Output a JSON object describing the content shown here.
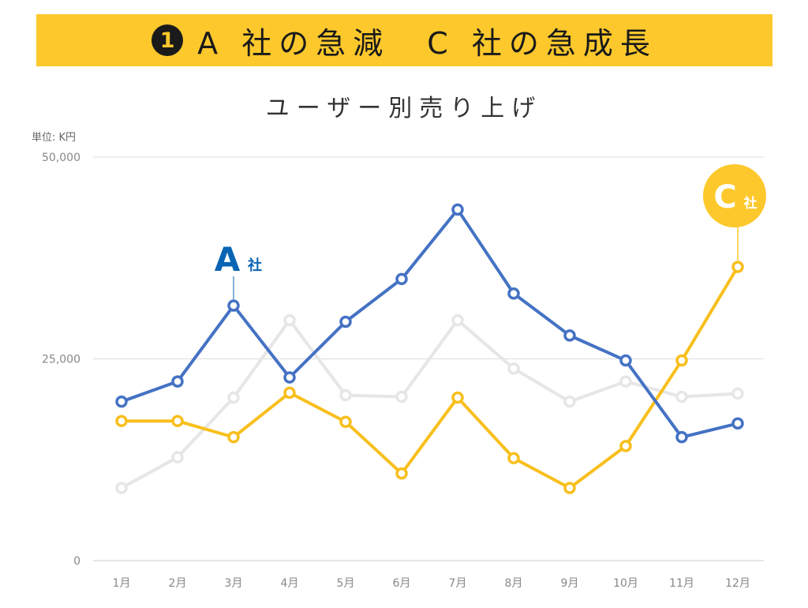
{
  "banner": {
    "number": "1",
    "text": "A 社の急減　C 社の急成長"
  },
  "chart_data": {
    "type": "line",
    "title": "ユーザー別売り上げ",
    "unit_label": "単位: K円",
    "categories": [
      "1月",
      "2月",
      "3月",
      "4月",
      "5月",
      "6月",
      "7月",
      "8月",
      "9月",
      "10月",
      "11月",
      "12月"
    ],
    "ylim": [
      0,
      50000
    ],
    "yticks": [
      0,
      25000,
      50000
    ],
    "ytick_labels": [
      "0",
      "25,000",
      "50,000"
    ],
    "grid": true,
    "series": [
      {
        "name": "",
        "color": "#e6e6e6",
        "values": [
          9000,
          12800,
          20200,
          29800,
          20500,
          20300,
          29800,
          23800,
          19700,
          22200,
          20300,
          20700
        ]
      },
      {
        "name": "",
        "color": "#f8bf1d",
        "values": [
          17300,
          17300,
          15300,
          20800,
          17200,
          10800,
          20200,
          12700,
          9000,
          14200,
          24800,
          36400
        ]
      },
      {
        "name": "",
        "color": "#4472c4",
        "values": [
          19700,
          22200,
          31600,
          22700,
          29600,
          34900,
          43500,
          33100,
          27900,
          24800,
          15300,
          17000
        ]
      }
    ],
    "annotations": [
      {
        "label": "A",
        "sub": "社",
        "color": "#0a64b4",
        "style": "text",
        "index": 2,
        "series": 2
      },
      {
        "label": "C",
        "sub": "社",
        "color": "#fcc82c",
        "style": "bubble",
        "index": 11,
        "series": 1
      }
    ]
  }
}
